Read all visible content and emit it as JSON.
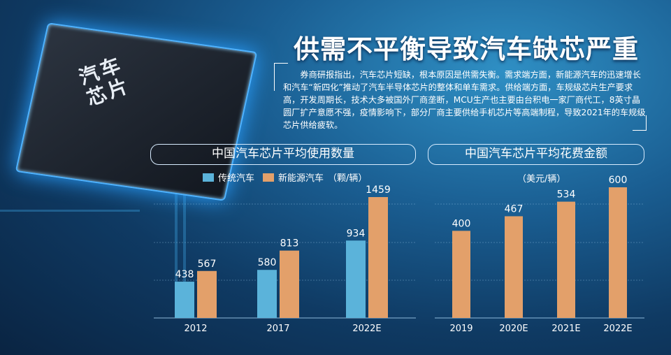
{
  "title": "供需不平衡导致汽车缺芯严重",
  "chip_label": "汽车芯片",
  "paragraph": "券商研报指出，汽车芯片短缺，根本原因是供需失衡。需求端方面，新能源汽车的迅速增长和汽车“新四化”推动了汽车半导体芯片的整体和单车需求。供给端方面，车规级芯片生产要求高，开发周期长，技术大多被国外厂商垄断，MCU生产也主要由台积电一家厂商代工，8英寸晶圆厂扩产意愿不强，疫情影响下，部分厂商主要供给手机芯片等高端制程，导致2021年的车规级芯片供给疲软。",
  "colors": {
    "traditional": "#5bb3da",
    "nev": "#e3a06a"
  },
  "chart_data": [
    {
      "type": "bar",
      "title": "中国汽车芯片平均使用数量",
      "unit": "（颗/辆）",
      "categories": [
        "2012",
        "2017",
        "2022E"
      ],
      "series": [
        {
          "name": "传统汽车",
          "values": [
            438,
            580,
            934
          ]
        },
        {
          "name": "新能源汽车",
          "values": [
            567,
            813,
            1459
          ]
        }
      ],
      "legend_position": "top",
      "ylim": [
        0,
        1500
      ],
      "grid": true
    },
    {
      "type": "bar",
      "title": "中国汽车芯片平均花费金额",
      "unit": "（美元/辆）",
      "categories": [
        "2019",
        "2020E",
        "2021E",
        "2022E"
      ],
      "values": [
        400,
        467,
        534,
        600
      ],
      "ylim": [
        0,
        620
      ],
      "grid": true
    }
  ]
}
